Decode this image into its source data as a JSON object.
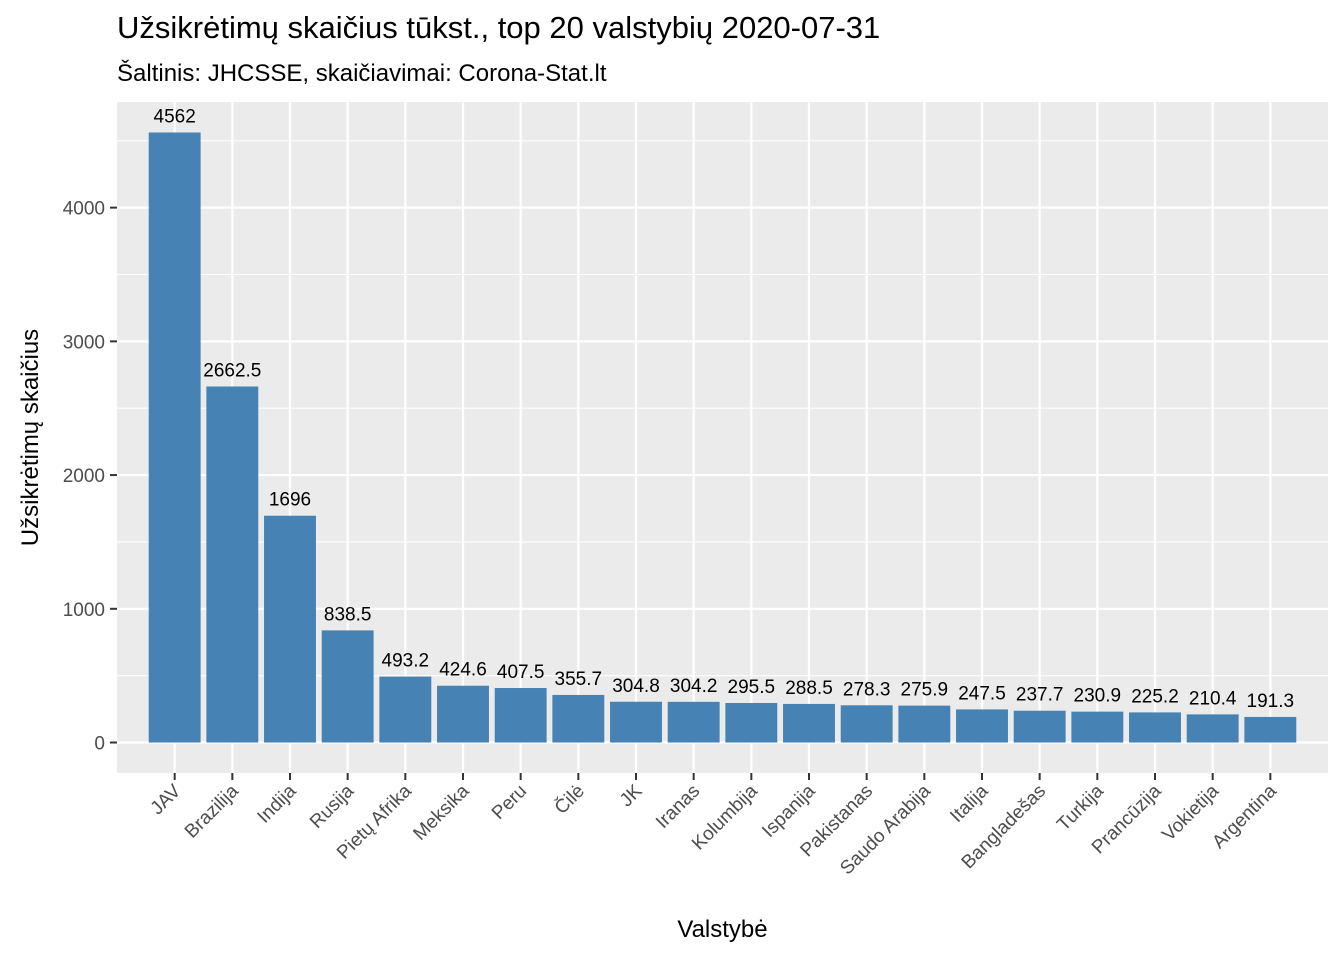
{
  "chart_data": {
    "type": "bar",
    "title": "Užsikrėtimų skaičius tūkst., top 20 valstybių 2020-07-31",
    "subtitle": "Šaltinis: JHCSSE, skaičiavimai: Corona-Stat.lt",
    "xlabel": "Valstybė",
    "ylabel": "Užsikrėtimų skaičius",
    "categories": [
      "JAV",
      "Brazilija",
      "Indija",
      "Rusija",
      "Pietų Afrika",
      "Meksika",
      "Peru",
      "Čilė",
      "JK",
      "Iranas",
      "Kolumbija",
      "Ispanija",
      "Pakistanas",
      "Saudo Arabija",
      "Italija",
      "Bangladešas",
      "Turkija",
      "Prancūzija",
      "Vokietija",
      "Argentina"
    ],
    "values": [
      4562,
      2662.5,
      1696,
      838.5,
      493.2,
      424.6,
      407.5,
      355.7,
      304.8,
      304.2,
      295.5,
      288.5,
      278.3,
      275.9,
      247.5,
      237.7,
      230.9,
      225.2,
      210.4,
      191.3
    ],
    "labels": [
      "4562",
      "2662.5",
      "1696",
      "838.5",
      "493.2",
      "424.6",
      "407.5",
      "355.7",
      "304.8",
      "304.2",
      "295.5",
      "288.5",
      "278.3",
      "275.9",
      "247.5",
      "237.7",
      "230.9",
      "225.2",
      "210.4",
      "191.3"
    ],
    "yticks": [
      0,
      1000,
      2000,
      3000,
      4000
    ],
    "ytick_labels": [
      "0",
      "1000",
      "2000",
      "3000",
      "4000"
    ],
    "ylim": [
      -228,
      4790
    ],
    "grid": true,
    "colors": {
      "bar": "#4682B4",
      "panel": "#EBEBEB",
      "grid": "#FFFFFF",
      "text": "#000000",
      "tick_text": "#4D4D4D",
      "tick": "#333333"
    }
  }
}
